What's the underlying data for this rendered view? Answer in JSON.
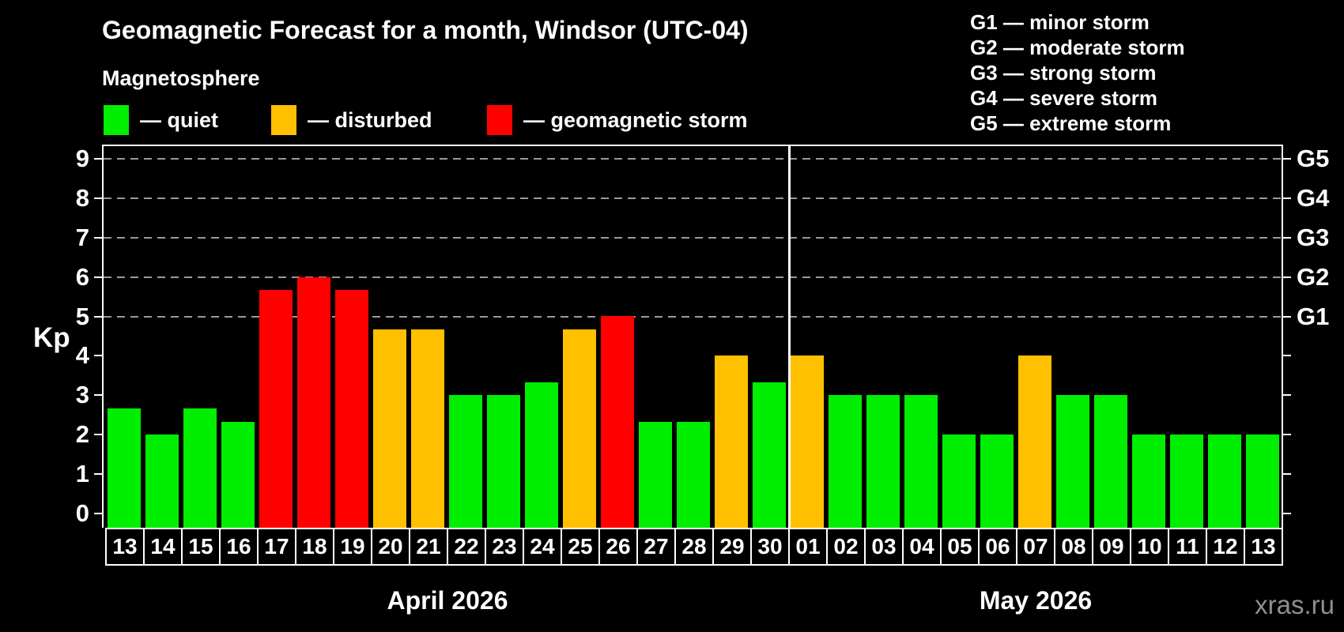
{
  "header": {
    "title": "Geomagnetic Forecast for a month, Windsor (UTC-04)",
    "subtitle": "Magnetosphere"
  },
  "legend": {
    "quiet_label": "— quiet",
    "disturbed_label": "— disturbed",
    "storm_label": "— geomagnetic storm"
  },
  "g_legend": [
    "G1 — minor storm",
    "G2 — moderate storm",
    "G3 — strong storm",
    "G4 — severe storm",
    "G5 — extreme storm"
  ],
  "watermark": "xras.ru",
  "colors": {
    "quiet": "#00ee00",
    "disturbed": "#ffc000",
    "storm": "#ff0000",
    "grid": "#9a9a9a",
    "axis": "#ffffff",
    "watermark": "#8f8f8f"
  },
  "chart_data": {
    "type": "bar",
    "title": "Geomagnetic Forecast for a month, Windsor (UTC-04)",
    "ylabel": "Kp",
    "ylim": [
      0,
      9
    ],
    "yticks": [
      0,
      1,
      2,
      3,
      4,
      5,
      6,
      7,
      8,
      9
    ],
    "grid_values": [
      5,
      6,
      7,
      8,
      9
    ],
    "grid_on": true,
    "legend_position": "top",
    "right_axis_labels": [
      {
        "kp": 5,
        "label": "G1"
      },
      {
        "kp": 6,
        "label": "G2"
      },
      {
        "kp": 7,
        "label": "G3"
      },
      {
        "kp": 8,
        "label": "G4"
      },
      {
        "kp": 9,
        "label": "G5"
      }
    ],
    "months": [
      {
        "label": "April 2026",
        "count": 18
      },
      {
        "label": "May 2026",
        "count": 13
      }
    ],
    "bars": [
      {
        "day": "13",
        "kp": 2.67,
        "state": "quiet"
      },
      {
        "day": "14",
        "kp": 2.0,
        "state": "quiet"
      },
      {
        "day": "15",
        "kp": 2.67,
        "state": "quiet"
      },
      {
        "day": "16",
        "kp": 2.33,
        "state": "quiet"
      },
      {
        "day": "17",
        "kp": 5.67,
        "state": "storm"
      },
      {
        "day": "18",
        "kp": 6.0,
        "state": "storm"
      },
      {
        "day": "19",
        "kp": 5.67,
        "state": "storm"
      },
      {
        "day": "20",
        "kp": 4.67,
        "state": "disturbed"
      },
      {
        "day": "21",
        "kp": 4.67,
        "state": "disturbed"
      },
      {
        "day": "22",
        "kp": 3.0,
        "state": "quiet"
      },
      {
        "day": "23",
        "kp": 3.0,
        "state": "quiet"
      },
      {
        "day": "24",
        "kp": 3.33,
        "state": "quiet"
      },
      {
        "day": "25",
        "kp": 4.67,
        "state": "disturbed"
      },
      {
        "day": "26",
        "kp": 5.0,
        "state": "storm"
      },
      {
        "day": "27",
        "kp": 2.33,
        "state": "quiet"
      },
      {
        "day": "28",
        "kp": 2.33,
        "state": "quiet"
      },
      {
        "day": "29",
        "kp": 4.0,
        "state": "disturbed"
      },
      {
        "day": "30",
        "kp": 3.33,
        "state": "quiet"
      },
      {
        "day": "01",
        "kp": 4.0,
        "state": "disturbed"
      },
      {
        "day": "02",
        "kp": 3.0,
        "state": "quiet"
      },
      {
        "day": "03",
        "kp": 3.0,
        "state": "quiet"
      },
      {
        "day": "04",
        "kp": 3.0,
        "state": "quiet"
      },
      {
        "day": "05",
        "kp": 2.0,
        "state": "quiet"
      },
      {
        "day": "06",
        "kp": 2.0,
        "state": "quiet"
      },
      {
        "day": "07",
        "kp": 4.0,
        "state": "disturbed"
      },
      {
        "day": "08",
        "kp": 3.0,
        "state": "quiet"
      },
      {
        "day": "09",
        "kp": 3.0,
        "state": "quiet"
      },
      {
        "day": "10",
        "kp": 2.0,
        "state": "quiet"
      },
      {
        "day": "11",
        "kp": 2.0,
        "state": "quiet"
      },
      {
        "day": "12",
        "kp": 2.0,
        "state": "quiet"
      },
      {
        "day": "13",
        "kp": 2.0,
        "state": "quiet"
      }
    ]
  }
}
